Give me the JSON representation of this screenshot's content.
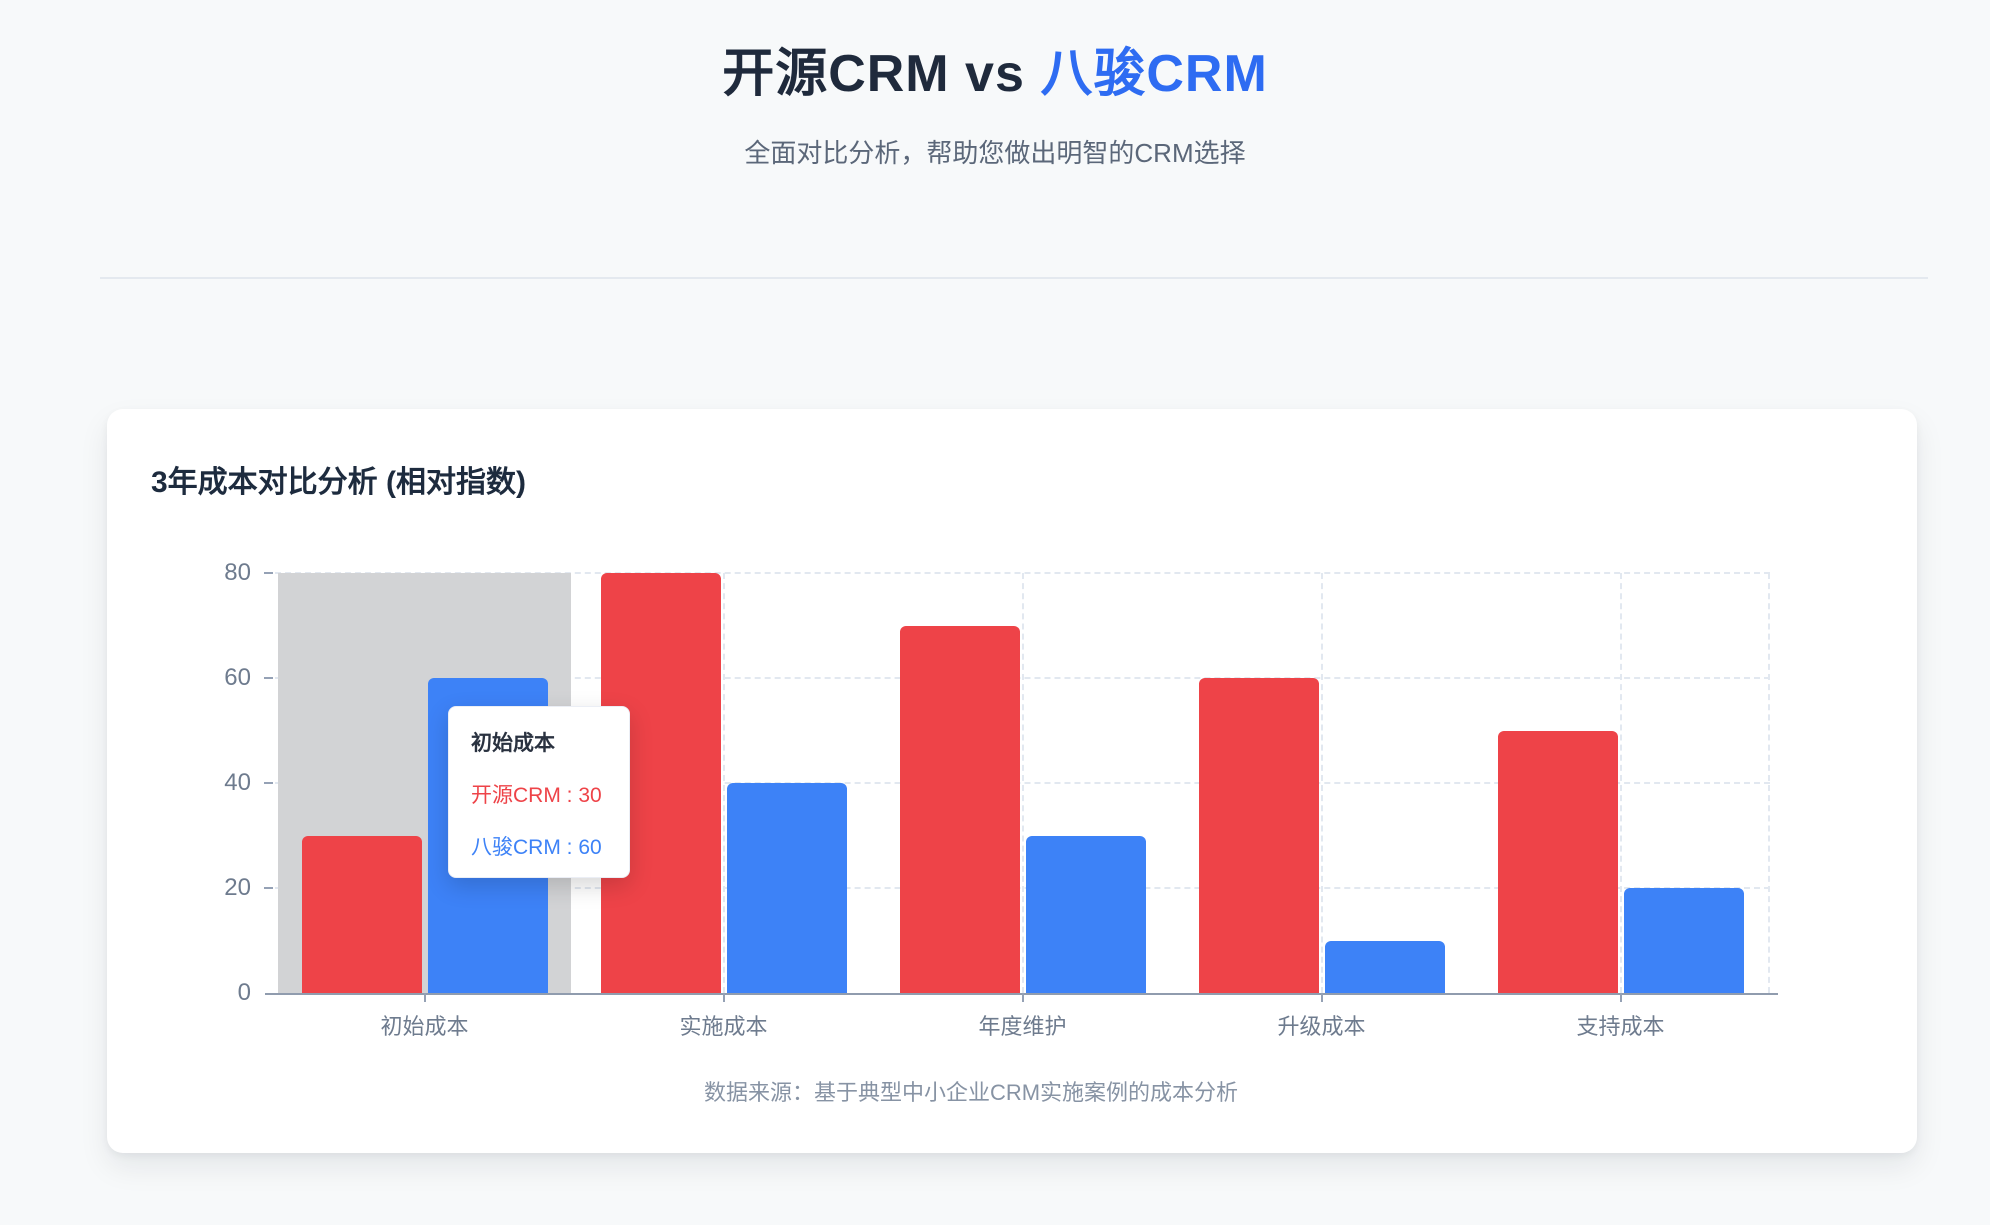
{
  "page": {
    "title_primary": "开源CRM vs ",
    "title_accent": "八骏CRM",
    "subtitle": "全面对比分析，帮助您做出明智的CRM选择"
  },
  "card": {
    "title": "3年成本对比分析 (相对指数)",
    "footnote": "数据来源：基于典型中小企业CRM实施案例的成本分析"
  },
  "tooltip": {
    "title": "初始成本",
    "separator": " : ",
    "rows": [
      {
        "label": "开源CRM",
        "value": 30,
        "color": "#ee4348"
      },
      {
        "label": "八骏CRM",
        "value": 60,
        "color": "#3d82f7"
      }
    ]
  },
  "chart_data": {
    "type": "bar",
    "title": "3年成本对比分析 (相对指数)",
    "categories": [
      "初始成本",
      "实施成本",
      "年度维护",
      "升级成本",
      "支持成本"
    ],
    "series": [
      {
        "name": "开源CRM",
        "color": "#ee4348",
        "values": [
          30,
          80,
          70,
          60,
          50
        ]
      },
      {
        "name": "八骏CRM",
        "color": "#3d82f7",
        "values": [
          60,
          40,
          30,
          10,
          20
        ]
      }
    ],
    "xlabel": "",
    "ylabel": "",
    "ylim": [
      0,
      80
    ],
    "ytick_step": 20,
    "grid": true,
    "legend_position": "none",
    "hover_category_index": 0,
    "hover_band_color": "#d2d3d5"
  },
  "colors": {
    "accent_blue": "#2e6cf2",
    "series_red": "#ee4348",
    "series_blue": "#3d82f7",
    "page_background": "#f7f9fa",
    "axis_line": "#909cae",
    "tick_label": "#6e7b8e"
  }
}
